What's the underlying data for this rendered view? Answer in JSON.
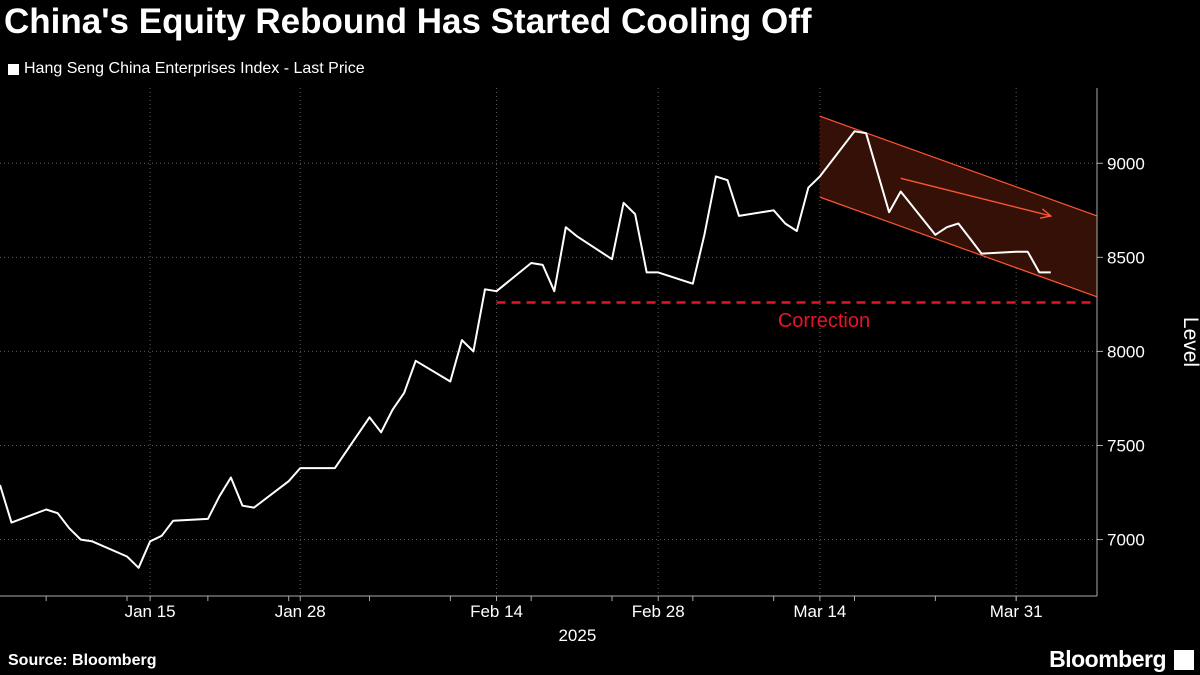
{
  "title": "China's Equity Rebound Has Started Cooling Off",
  "legend": {
    "label": "Hang Seng China Enterprises Index - Last Price",
    "color": "#ffffff"
  },
  "footer": {
    "source": "Source: Bloomberg",
    "brand": "Bloomberg",
    "brand_icon": "chart-icon"
  },
  "annotations": {
    "correction_label": "Correction",
    "correction_color": "#e8132a",
    "channel_color": "#ff5533"
  },
  "chart_data": {
    "type": "line",
    "series": [
      {
        "name": "Hang Seng China Enterprises Index - Last Price",
        "x": [
          "2025-01-02",
          "2025-01-03",
          "2025-01-06",
          "2025-01-07",
          "2025-01-08",
          "2025-01-09",
          "2025-01-10",
          "2025-01-13",
          "2025-01-14",
          "2025-01-15",
          "2025-01-16",
          "2025-01-17",
          "2025-01-20",
          "2025-01-21",
          "2025-01-22",
          "2025-01-23",
          "2025-01-24",
          "2025-01-27",
          "2025-01-28",
          "2025-01-29",
          "2025-01-31",
          "2025-02-03",
          "2025-02-04",
          "2025-02-05",
          "2025-02-06",
          "2025-02-07",
          "2025-02-10",
          "2025-02-11",
          "2025-02-12",
          "2025-02-13",
          "2025-02-14",
          "2025-02-17",
          "2025-02-18",
          "2025-02-19",
          "2025-02-20",
          "2025-02-21",
          "2025-02-24",
          "2025-02-25",
          "2025-02-26",
          "2025-02-27",
          "2025-02-28",
          "2025-03-03",
          "2025-03-04",
          "2025-03-05",
          "2025-03-06",
          "2025-03-07",
          "2025-03-10",
          "2025-03-11",
          "2025-03-12",
          "2025-03-13",
          "2025-03-14",
          "2025-03-17",
          "2025-03-18",
          "2025-03-19",
          "2025-03-20",
          "2025-03-21",
          "2025-03-24",
          "2025-03-25",
          "2025-03-26",
          "2025-03-27",
          "2025-03-28",
          "2025-03-31",
          "2025-04-01",
          "2025-04-02",
          "2025-04-03"
        ],
        "values": [
          7290,
          7090,
          7160,
          7140,
          7060,
          7000,
          6990,
          6910,
          6850,
          6990,
          7020,
          7100,
          7110,
          7230,
          7330,
          7180,
          7170,
          7310,
          7380,
          7380,
          7380,
          7650,
          7570,
          7690,
          7780,
          7950,
          7840,
          8060,
          8000,
          8330,
          8320,
          8470,
          8460,
          8320,
          8660,
          8610,
          8490,
          8790,
          8730,
          8420,
          8420,
          8360,
          8620,
          8930,
          8910,
          8720,
          8750,
          8680,
          8640,
          8870,
          8930,
          9170,
          9160,
          8950,
          8740,
          8850,
          8620,
          8660,
          8680,
          8600,
          8520,
          8530,
          8530,
          8420,
          8420
        ]
      }
    ],
    "x_ticks": [
      "Jan 15",
      "Jan 28",
      "Feb 14",
      "Feb 28",
      "Mar 14",
      "Mar 31"
    ],
    "x_sublabel": "2025",
    "y_ticks": [
      7000,
      7500,
      8000,
      8500,
      9000
    ],
    "ylim": [
      6700,
      9400
    ],
    "ylabel": "Level",
    "correction_level": 8260,
    "channel": {
      "start": "2025-03-14",
      "end": "2025-04-07",
      "upper": [
        9250,
        8720
      ],
      "lower": [
        8820,
        8290
      ]
    },
    "grid": true,
    "legend_position": "top-left"
  }
}
